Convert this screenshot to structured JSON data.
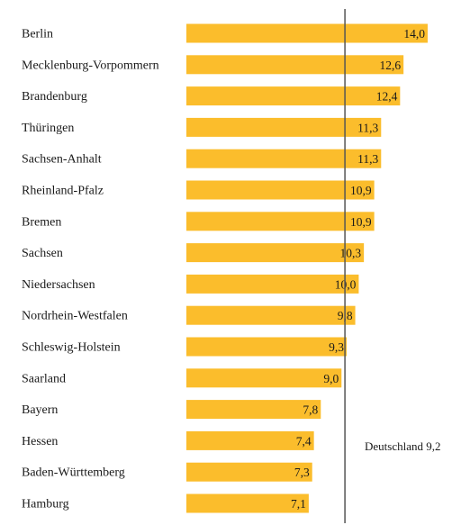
{
  "chart_data": {
    "type": "bar",
    "orientation": "horizontal",
    "categories": [
      "Berlin",
      "Mecklenburg-Vorpommern",
      "Brandenburg",
      "Thüringen",
      "Sachsen-Anhalt",
      "Rheinland-Pfalz",
      "Bremen",
      "Sachsen",
      "Niedersachsen",
      "Nordrhein-Westfalen",
      "Schleswig-Holstein",
      "Saarland",
      "Bayern",
      "Hessen",
      "Baden-Württemberg",
      "Hamburg"
    ],
    "values": [
      14.0,
      12.6,
      12.4,
      11.3,
      11.3,
      10.9,
      10.9,
      10.3,
      10.0,
      9.8,
      9.3,
      9.0,
      7.8,
      7.4,
      7.3,
      7.1
    ],
    "value_labels": [
      "14,0",
      "12,6",
      "12,4",
      "11,3",
      "11,3",
      "10,9",
      "10,9",
      "10,3",
      "10,0",
      "9,8",
      "9,3",
      "9,0",
      "7,8",
      "7,4",
      "7,3",
      "7,1"
    ],
    "reference_line": {
      "value": 9.2,
      "label": "Deutschland 9,2"
    },
    "bar_color": "#fbbd2c",
    "reference_line_color": "#555555",
    "title": "",
    "xlabel": "",
    "ylabel": "",
    "grid": false,
    "legend": "none"
  }
}
